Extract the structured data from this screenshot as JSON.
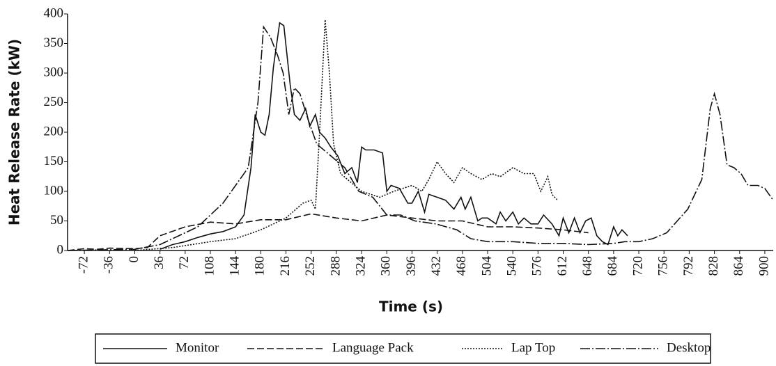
{
  "chart_data": {
    "type": "line",
    "y_label": "Heat Release Rate (kW)",
    "x_label": "Time (s)",
    "xlim": [
      -96,
      912
    ],
    "ylim": [
      0,
      400
    ],
    "xticks": [
      -72,
      -36,
      0,
      36,
      72,
      108,
      144,
      180,
      216,
      252,
      288,
      324,
      360,
      396,
      432,
      468,
      504,
      540,
      576,
      612,
      648,
      684,
      720,
      756,
      792,
      828,
      864,
      900
    ],
    "yticks": [
      0,
      50,
      100,
      150,
      200,
      250,
      300,
      350,
      400
    ],
    "series": [
      {
        "name": "Monitor",
        "color": "#111111",
        "dash": "solid",
        "x": [
          36,
          54,
          72,
          90,
          108,
          126,
          144,
          156,
          166,
          172,
          180,
          186,
          192,
          198,
          207,
          213,
          222,
          228,
          236,
          244,
          250,
          258,
          264,
          272,
          280,
          290,
          300,
          310,
          318,
          324,
          330,
          342,
          354,
          360,
          366,
          378,
          390,
          396,
          405,
          414,
          420,
          432,
          444,
          456,
          466,
          472,
          480,
          490,
          496,
          504,
          516,
          522,
          530,
          540,
          548,
          556,
          566,
          576,
          584,
          596,
          606,
          612,
          620,
          628,
          636,
          644,
          652,
          660,
          668,
          676,
          684,
          690,
          696,
          704
        ],
        "values": [
          2,
          10,
          15,
          22,
          28,
          32,
          40,
          60,
          140,
          230,
          200,
          195,
          230,
          310,
          385,
          380,
          280,
          230,
          220,
          240,
          210,
          230,
          200,
          190,
          175,
          160,
          130,
          140,
          115,
          175,
          170,
          170,
          165,
          100,
          110,
          105,
          80,
          80,
          100,
          65,
          95,
          90,
          85,
          70,
          90,
          70,
          90,
          50,
          55,
          55,
          45,
          65,
          50,
          65,
          45,
          55,
          45,
          45,
          60,
          45,
          25,
          55,
          30,
          55,
          30,
          50,
          55,
          25,
          15,
          10,
          40,
          25,
          35,
          25
        ]
      },
      {
        "name": "Language Pack",
        "color": "#111111",
        "dash": "dashed",
        "x": [
          -96,
          -72,
          -54,
          -36,
          0,
          18,
          36,
          72,
          108,
          144,
          180,
          216,
          252,
          288,
          324,
          360,
          396,
          432,
          468,
          504,
          540,
          576,
          612,
          648
        ],
        "values": [
          0,
          3,
          2,
          4,
          3,
          5,
          25,
          40,
          48,
          45,
          52,
          52,
          62,
          55,
          50,
          60,
          55,
          50,
          50,
          40,
          40,
          38,
          35,
          30
        ]
      },
      {
        "name": "Lap Top",
        "color": "#111111",
        "dash": "dotted",
        "x": [
          0,
          54,
          108,
          144,
          180,
          216,
          240,
          252,
          258,
          264,
          272,
          278,
          284,
          294,
          324,
          350,
          370,
          396,
          410,
          420,
          432,
          444,
          456,
          468,
          480,
          496,
          510,
          522,
          540,
          556,
          570,
          580,
          590,
          596,
          604
        ],
        "values": [
          0,
          5,
          15,
          20,
          35,
          55,
          80,
          85,
          70,
          200,
          390,
          300,
          180,
          130,
          100,
          90,
          100,
          110,
          100,
          120,
          150,
          130,
          115,
          140,
          130,
          120,
          130,
          125,
          140,
          130,
          130,
          100,
          125,
          95,
          85
        ]
      },
      {
        "name": "Desktop",
        "color": "#111111",
        "dash": "dashdot",
        "x": [
          -96,
          0,
          36,
          90,
          126,
          162,
          176,
          184,
          194,
          204,
          212,
          220,
          228,
          236,
          248,
          260,
          280,
          300,
          320,
          340,
          360,
          380,
          400,
          430,
          460,
          480,
          504,
          540,
          576,
          612,
          648,
          684,
          700,
          720,
          740,
          760,
          790,
          810,
          822,
          828,
          836,
          846,
          856,
          866,
          876,
          890,
          900,
          912
        ],
        "values": [
          0,
          2,
          10,
          40,
          80,
          140,
          250,
          378,
          360,
          330,
          300,
          230,
          275,
          265,
          220,
          180,
          160,
          140,
          100,
          90,
          60,
          60,
          50,
          45,
          35,
          20,
          15,
          15,
          12,
          12,
          10,
          12,
          15,
          15,
          20,
          30,
          70,
          120,
          240,
          265,
          230,
          145,
          140,
          130,
          110,
          110,
          105,
          85
        ]
      }
    ]
  }
}
